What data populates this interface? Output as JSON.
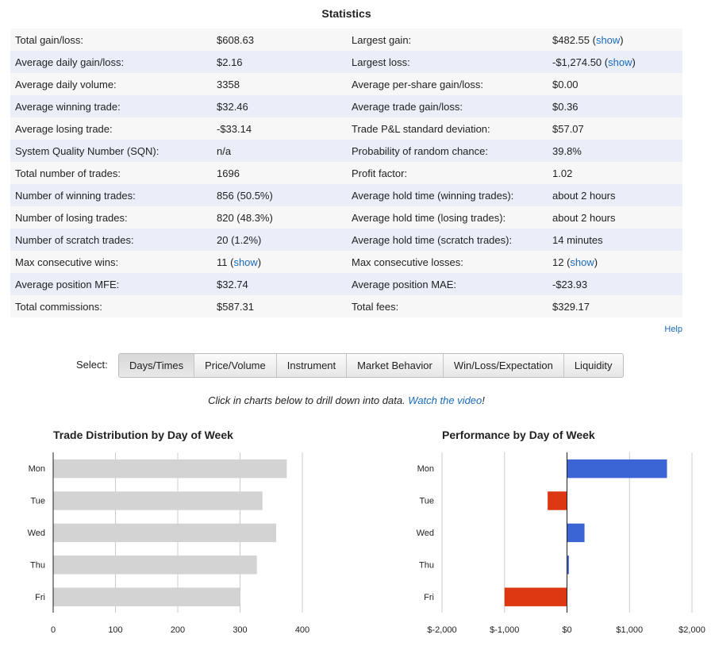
{
  "title": "Statistics",
  "stats": [
    [
      "Total gain/loss:",
      "$608.63",
      "Largest gain:",
      "$482.55 (",
      "show",
      ")"
    ],
    [
      "Average daily gain/loss:",
      "$2.16",
      "Largest loss:",
      "-$1,274.50 (",
      "show",
      ")"
    ],
    [
      "Average daily volume:",
      "3358",
      "Average per-share gain/loss:",
      "$0.00"
    ],
    [
      "Average winning trade:",
      "$32.46",
      "Average trade gain/loss:",
      "$0.36"
    ],
    [
      "Average losing trade:",
      "-$33.14",
      "Trade P&L standard deviation:",
      "$57.07"
    ],
    [
      "System Quality Number (SQN):",
      "n/a",
      "Probability of random chance:",
      "39.8%"
    ],
    [
      "Total number of trades:",
      "1696",
      "Profit factor:",
      "1.02"
    ],
    [
      "Number of winning trades:",
      "856 (50.5%)",
      "Average hold time (winning trades):",
      "about 2 hours"
    ],
    [
      "Number of losing trades:",
      "820 (48.3%)",
      "Average hold time (losing trades):",
      "about 2 hours"
    ],
    [
      "Number of scratch trades:",
      "20 (1.2%)",
      "Average hold time (scratch trades):",
      "14 minutes"
    ],
    [
      "Max consecutive wins:",
      "11 (",
      "Max consecutive losses:",
      "12 ("
    ],
    [
      "Average position MFE:",
      "$32.74",
      "Average position MAE:",
      "-$23.93"
    ],
    [
      "Total commissions:",
      "$587.31",
      "Total fees:",
      "$329.17"
    ]
  ],
  "show_link": "show",
  "help": "Help",
  "select_label": "Select:",
  "tabs": [
    "Days/Times",
    "Price/Volume",
    "Instrument",
    "Market Behavior",
    "Win/Loss/Expectation",
    "Liquidity"
  ],
  "active_tab": 0,
  "hint_text": "Click in charts below to drill down into data. ",
  "hint_link": "Watch the video",
  "hint_end": "!",
  "colors": {
    "link": "#1a6bbd",
    "bar_neutral": "#d3d3d3",
    "bar_positive": "#3b64d4",
    "bar_negative": "#dc3912"
  },
  "chart_data": [
    {
      "type": "bar",
      "orientation": "horizontal",
      "title": "Trade Distribution by Day of Week",
      "categories": [
        "Mon",
        "Tue",
        "Wed",
        "Thu",
        "Fri"
      ],
      "values": [
        375,
        336,
        358,
        327,
        300
      ],
      "xlim": [
        0,
        400
      ],
      "ticks": [
        0,
        100,
        200,
        300,
        400
      ],
      "tick_labels": [
        "0",
        "100",
        "200",
        "300",
        "400"
      ],
      "grid": true
    },
    {
      "type": "bar",
      "orientation": "horizontal",
      "title": "Performance by Day of Week",
      "categories": [
        "Mon",
        "Tue",
        "Wed",
        "Thu",
        "Fri"
      ],
      "values": [
        1600,
        -310,
        280,
        30,
        -1000
      ],
      "xlim": [
        -2000,
        2000
      ],
      "ticks": [
        -2000,
        -1000,
        0,
        1000,
        2000
      ],
      "tick_labels": [
        "$-2,000",
        "$-1,000",
        "$0",
        "$1,000",
        "$2,000"
      ],
      "grid": true
    }
  ]
}
